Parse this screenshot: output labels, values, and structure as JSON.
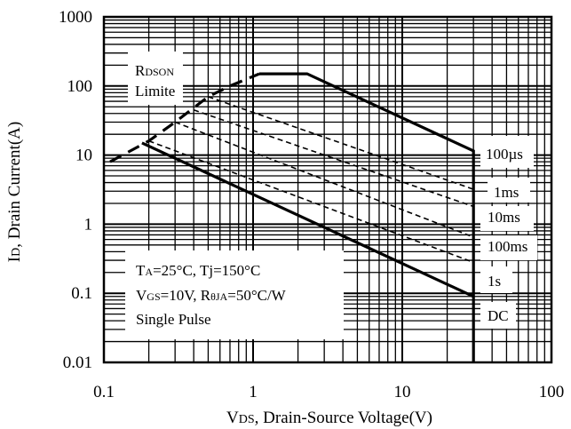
{
  "chart_data": {
    "type": "line",
    "title": "",
    "x_scale": "log",
    "y_scale": "log",
    "xlim": [
      0.1,
      100
    ],
    "ylim": [
      0.01,
      1000
    ],
    "grid": true,
    "x_ticks": [
      "0.1",
      "1",
      "10",
      "100"
    ],
    "y_ticks": [
      "0.01",
      "0.1",
      "1",
      "10",
      "100",
      "1000"
    ],
    "xlabel": {
      "main": "V",
      "sub": "DS",
      "rest": ", Drain-Source Voltage(V)"
    },
    "ylabel": {
      "main": "I",
      "sub": "D",
      "rest": ", Drain Current(A)"
    },
    "rdson_label": {
      "line1": "R",
      "line1_sub": "DSON",
      "line2": "Limite"
    },
    "conditions": {
      "line1": {
        "p1": "T",
        "p1_sub": "A",
        "p2": "=25°C, Tj=150°C"
      },
      "line2": {
        "p1": "V",
        "p1_sub": "GS",
        "p2": "=10V, R",
        "p2_sub": "θJA",
        "p3": "=50°C/W"
      },
      "line3": "Single Pulse"
    },
    "rdson_limit": [
      [
        0.11,
        8
      ],
      [
        0.2,
        16
      ],
      [
        0.3,
        30
      ],
      [
        0.5,
        70
      ],
      [
        0.7,
        100
      ],
      [
        1.1,
        150
      ]
    ],
    "series": [
      {
        "name": "100µs",
        "style": "solid",
        "points": [
          [
            1.1,
            150
          ],
          [
            2.3,
            150
          ],
          [
            30,
            11.5
          ],
          [
            30,
            0.01
          ]
        ]
      },
      {
        "name": "1ms",
        "style": "dashed",
        "points": [
          [
            0.5,
            70
          ],
          [
            30,
            3.2
          ]
        ]
      },
      {
        "name": "10ms",
        "style": "dashed",
        "points": [
          [
            0.4,
            45
          ],
          [
            30,
            1.8
          ]
        ]
      },
      {
        "name": "100ms",
        "style": "dashed",
        "points": [
          [
            0.3,
            30
          ],
          [
            30,
            0.65
          ]
        ]
      },
      {
        "name": "1s",
        "style": "dashed",
        "points": [
          [
            0.2,
            16
          ],
          [
            30,
            0.28
          ]
        ]
      },
      {
        "name": "DC",
        "style": "solid",
        "points": [
          [
            0.18,
            15
          ],
          [
            30,
            0.09
          ]
        ]
      }
    ]
  }
}
